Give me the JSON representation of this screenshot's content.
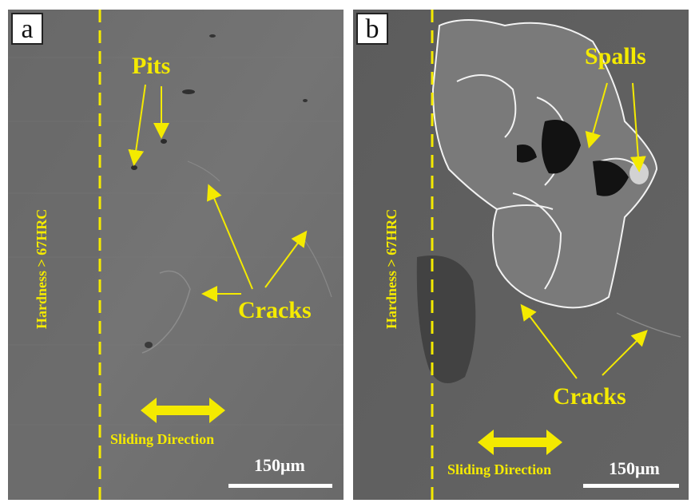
{
  "panels": [
    {
      "label": "a",
      "hardness": "Hardness > 67HRC",
      "labels": {
        "pits": "Pits",
        "cracks": "Cracks"
      },
      "sliding_direction": "Sliding Direction",
      "scale": "150μm"
    },
    {
      "label": "b",
      "hardness": "Hardness > 67HRC",
      "labels": {
        "spalls": "Spalls",
        "cracks": "Cracks"
      },
      "sliding_direction": "Sliding Direction",
      "scale": "150μm"
    }
  ],
  "colors": {
    "annotation": "#f4ea00",
    "surface": "#6f6f6f",
    "scale": "#ffffff"
  }
}
